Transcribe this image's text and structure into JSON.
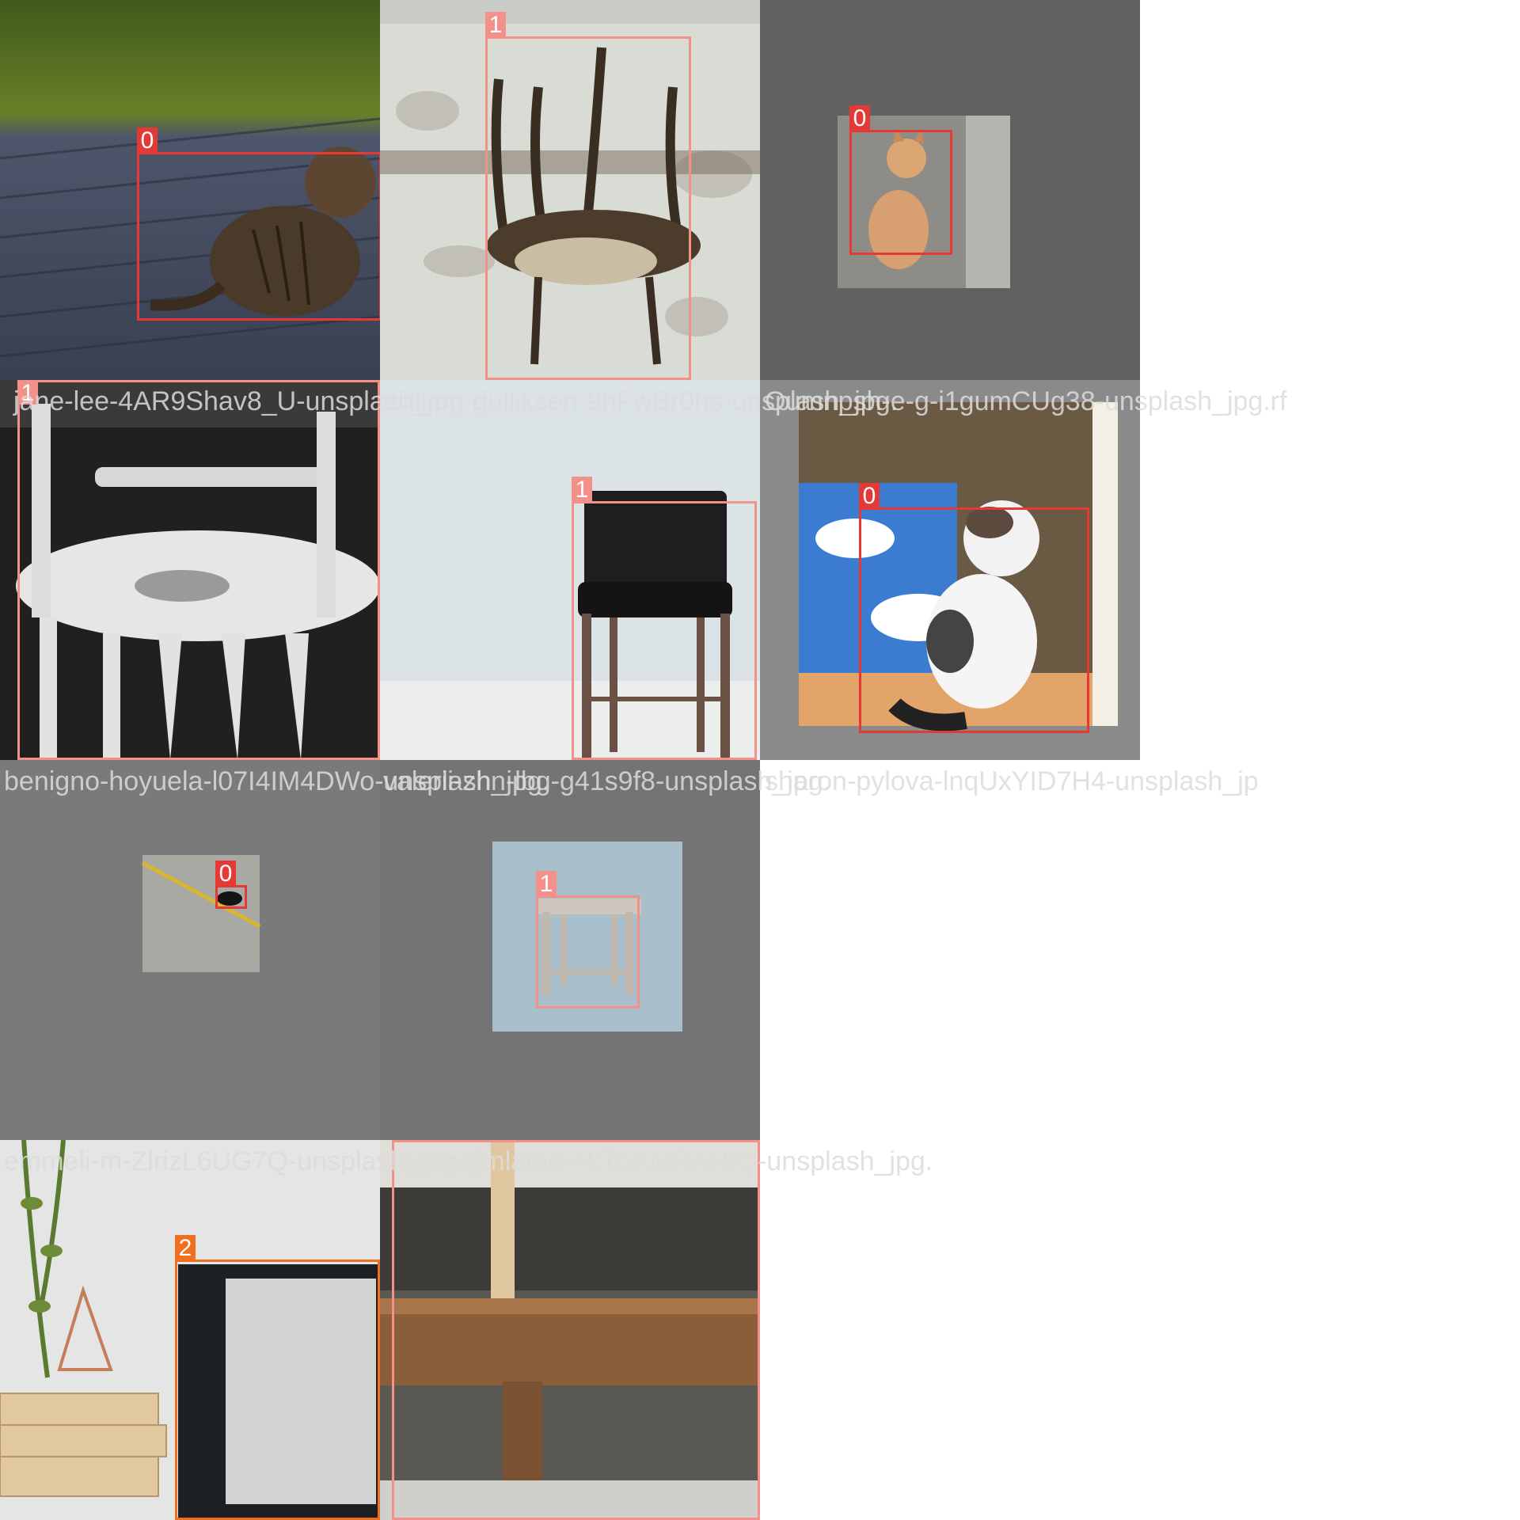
{
  "tiles": [
    {
      "id": "t1",
      "caption": "",
      "boxes": [
        {
          "cls": "0",
          "color": "#e53935"
        }
      ]
    },
    {
      "id": "t2",
      "caption": "",
      "boxes": [
        {
          "cls": "1",
          "color": "#f4908a"
        }
      ]
    },
    {
      "id": "t3",
      "caption": "",
      "boxes": [
        {
          "cls": "0",
          "color": "#e53935"
        }
      ]
    },
    {
      "id": "t4",
      "caption": "jane-lee-4AR9Shav8_U-unsplash_jpg.rf",
      "boxes": [
        {
          "cls": "1",
          "color": "#f4908a"
        }
      ]
    },
    {
      "id": "t5",
      "caption": "william-gulliksen-9hFwBr0hs-unsplash_jpg.",
      "boxes": [
        {
          "cls": "1",
          "color": "#f4908a"
        }
      ]
    },
    {
      "id": "t6",
      "caption": "Oumnpsh-e-g-i1gumCUg38-unsplash_jpg.rf",
      "boxes": [
        {
          "cls": "0",
          "color": "#e53935"
        }
      ]
    },
    {
      "id": "t7",
      "caption": "benigno-hoyuela-l07I4IM4DWo-unsplash_jpg.",
      "boxes": [
        {
          "cls": "0",
          "color": "#e53935"
        }
      ]
    },
    {
      "id": "t8",
      "caption": "valerii-zhn-lbg-g41s9f8-unsplash_jpg.",
      "boxes": [
        {
          "cls": "1",
          "color": "#f4908a"
        }
      ]
    },
    {
      "id": "t9",
      "caption": "sharon-pylova-lnqUxYID7H4-unsplash_jp",
      "boxes": []
    },
    {
      "id": "t10",
      "caption": "emmeli-m-ZlrizL6UG7Q-unsplash_jpg.rf",
      "boxes": [
        {
          "cls": "2",
          "color": "#f07020"
        }
      ]
    },
    {
      "id": "t11",
      "caption": "laean-gmlaf6e-4kTbAMRAHtQ-unsplash_jpg.",
      "boxes": [
        {
          "cls": "1",
          "color": "#f4908a"
        }
      ]
    }
  ],
  "colors": {
    "class0": "#e53935",
    "class1": "#f4908a",
    "class2": "#f07020",
    "padding": "#727272"
  }
}
